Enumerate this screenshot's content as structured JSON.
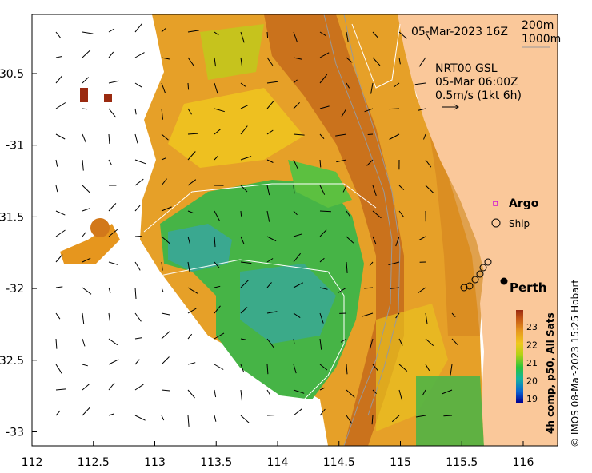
{
  "date_label": "05-Mar-2023 16Z",
  "depth_legend": {
    "contour_1": "200m",
    "contour_2": "1000m"
  },
  "current_info": {
    "line1": "NRT00 GSL",
    "line2": "05-Mar 06:00Z",
    "line3": "0.5m/s (1kt 6h)"
  },
  "legend": {
    "argo": "Argo",
    "ship": "Ship"
  },
  "city_label": "Perth",
  "colorbar": {
    "title": "4h comp, p50, All Sats",
    "ticks": [
      "23",
      "22",
      "21",
      "20",
      "19"
    ],
    "stops": [
      "#000090",
      "#0a64d2",
      "#14b4a0",
      "#28c43c",
      "#b4d214",
      "#f0c81e",
      "#e6961e",
      "#c85a14",
      "#9a2a10"
    ]
  },
  "credit": "© IMOS 08-Mar-2023 15:25 Hobart",
  "x_ticks": [
    "112",
    "112.5",
    "113",
    "113.5",
    "114",
    "114.5",
    "115",
    "115.5",
    "116"
  ],
  "y_ticks": [
    "-30.5",
    "-31",
    "-31.5",
    "-32",
    "-32.5",
    "-33"
  ],
  "colors": {
    "land": "#fac89a",
    "sea_warm": "#e6a028",
    "sea_cool": "#46b446",
    "current_arrow": "#000000",
    "argo_marker": "#d214d2"
  },
  "icons": [
    "argo-marker-icon",
    "ship-marker-icon",
    "perth-marker-icon",
    "current-arrow-icon"
  ]
}
